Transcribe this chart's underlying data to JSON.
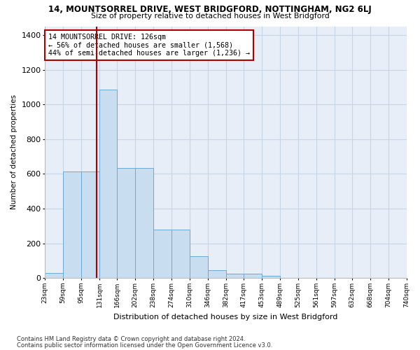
{
  "title1": "14, MOUNTSORREL DRIVE, WEST BRIDGFORD, NOTTINGHAM, NG2 6LJ",
  "title2": "Size of property relative to detached houses in West Bridgford",
  "xlabel": "Distribution of detached houses by size in West Bridgford",
  "ylabel": "Number of detached properties",
  "footnote1": "Contains HM Land Registry data © Crown copyright and database right 2024.",
  "footnote2": "Contains public sector information licensed under the Open Government Licence v3.0.",
  "bar_color": "#c9ddf0",
  "bar_edge_color": "#6aaad4",
  "grid_color": "#c8d4e8",
  "background_color": "#e8eef8",
  "vline_color": "#aa0000",
  "annotation_box_edge_color": "#aa0000",
  "annotation_line1": "14 MOUNTSORREL DRIVE: 126sqm",
  "annotation_line2": "← 56% of detached houses are smaller (1,568)",
  "annotation_line3": "44% of semi-detached houses are larger (1,236) →",
  "property_size_sqm": 126,
  "bin_edges": [
    23,
    59,
    95,
    131,
    166,
    202,
    238,
    274,
    310,
    346,
    382,
    417,
    453,
    489,
    525,
    561,
    597,
    632,
    668,
    704,
    740
  ],
  "bin_labels": [
    "23sqm",
    "59sqm",
    "95sqm",
    "131sqm",
    "166sqm",
    "202sqm",
    "238sqm",
    "274sqm",
    "310sqm",
    "346sqm",
    "382sqm",
    "417sqm",
    "453sqm",
    "489sqm",
    "525sqm",
    "561sqm",
    "597sqm",
    "632sqm",
    "668sqm",
    "704sqm",
    "740sqm"
  ],
  "bar_heights": [
    30,
    615,
    615,
    1085,
    635,
    635,
    280,
    280,
    125,
    45,
    25,
    25,
    15,
    2,
    0,
    0,
    0,
    0,
    0,
    0
  ],
  "ylim": [
    0,
    1450
  ],
  "yticks": [
    0,
    200,
    400,
    600,
    800,
    1000,
    1200,
    1400
  ]
}
